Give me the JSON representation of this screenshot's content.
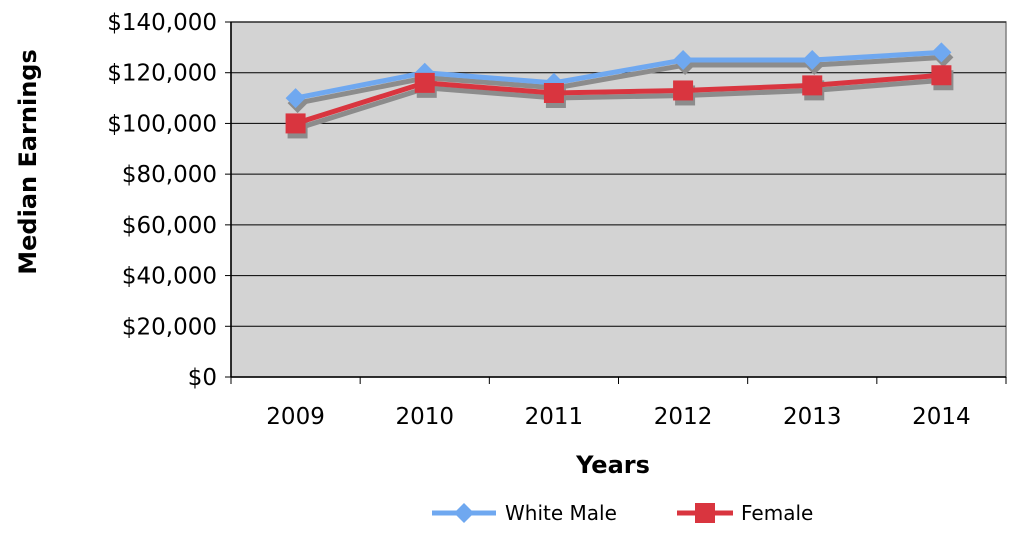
{
  "chart_data": {
    "type": "line",
    "title": "",
    "xlabel": "Years",
    "ylabel": "Median Earnings",
    "categories": [
      "2009",
      "2010",
      "2011",
      "2012",
      "2013",
      "2014"
    ],
    "ylim": [
      0,
      140000
    ],
    "yticks": [
      0,
      20000,
      40000,
      60000,
      80000,
      100000,
      120000,
      140000
    ],
    "ytick_labels": [
      "$0",
      "$20,000",
      "$40,000",
      "$60,000",
      "$80,000",
      "$100,000",
      "$120,000",
      "$140,000"
    ],
    "grid": "horizontal",
    "legend_position": "bottom",
    "plot_background": "#d3d3d3",
    "series": [
      {
        "name": "White Male",
        "color": "#6fa8f0",
        "marker": "diamond",
        "values": [
          110000,
          120000,
          116000,
          125000,
          125000,
          128000
        ]
      },
      {
        "name": "Female",
        "color": "#d9353f",
        "marker": "square",
        "values": [
          100000,
          116000,
          112000,
          113000,
          115000,
          119000
        ]
      }
    ]
  }
}
